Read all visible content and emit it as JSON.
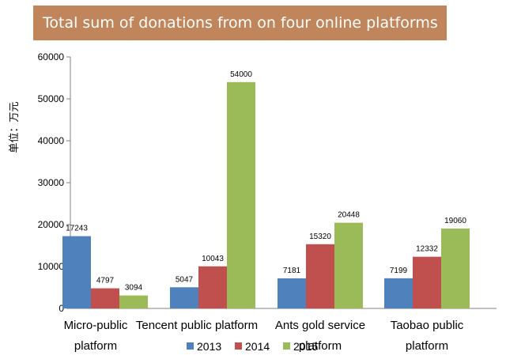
{
  "title": "Total sum of donations from on four online platforms",
  "colors": {
    "banner_bg": "#c0855a",
    "series_2013": "#4f81bd",
    "series_2014": "#c0504d",
    "series_2015": "#9bbb59"
  },
  "chart_data": {
    "type": "bar",
    "title": "Total sum of donations from on four online platforms",
    "ylabel": "单位：万元",
    "xlabel": "",
    "ylim": [
      0,
      60000
    ],
    "yticks": [
      0,
      10000,
      20000,
      30000,
      40000,
      50000,
      60000
    ],
    "grid": false,
    "legend_position": "bottom",
    "categories": [
      [
        "Micro-public",
        "platform"
      ],
      [
        "Tencent public  platform"
      ],
      [
        "Ants gold service",
        "platform"
      ],
      [
        "Taobao public",
        "platform"
      ]
    ],
    "series": [
      {
        "name": "2013",
        "color": "#4f81bd",
        "values": [
          17243,
          5047,
          7181,
          7199
        ]
      },
      {
        "name": "2014",
        "color": "#c0504d",
        "values": [
          4797,
          10043,
          15320,
          12332
        ]
      },
      {
        "name": "2015",
        "color": "#9bbb59",
        "values": [
          3094,
          54000,
          20448,
          19060
        ]
      }
    ]
  }
}
